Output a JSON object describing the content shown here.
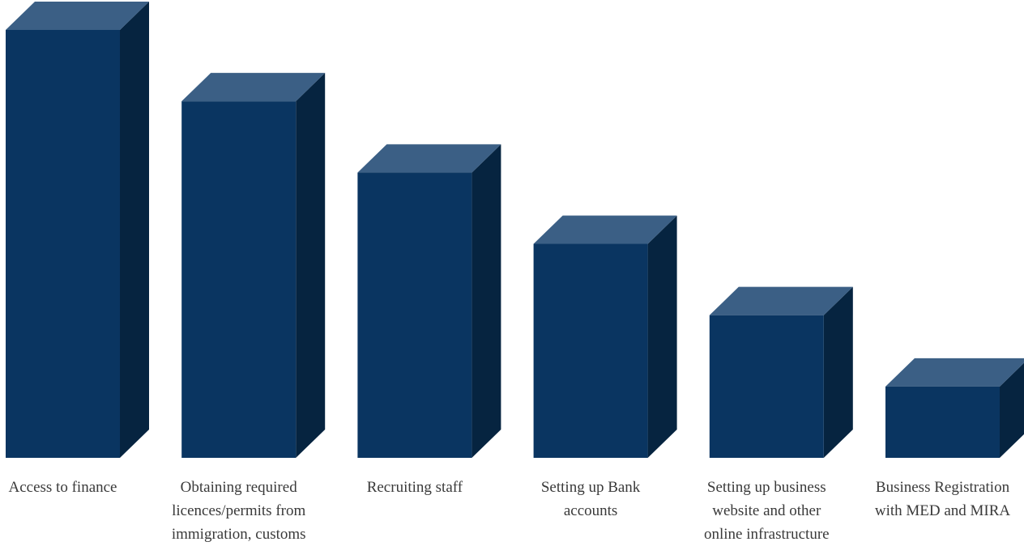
{
  "chart_data": {
    "type": "bar",
    "style": "3d-columns",
    "categories": [
      [
        "Access to finance"
      ],
      [
        "Obtaining required",
        "licences/permits from",
        "immigration, customs"
      ],
      [
        "Recruiting staff"
      ],
      [
        "Setting up Bank",
        "accounts"
      ],
      [
        "Setting up business",
        "website and other",
        "online infrastructure"
      ],
      [
        "Business Registration",
        "with MED and MIRA"
      ]
    ],
    "values": [
      6,
      5,
      4,
      3,
      2,
      1
    ],
    "ylim": [
      0,
      6
    ],
    "grid": false,
    "legend": "none",
    "colors": {
      "front": "#0a3561",
      "top": "#3b5f85",
      "side": "#062440"
    }
  }
}
